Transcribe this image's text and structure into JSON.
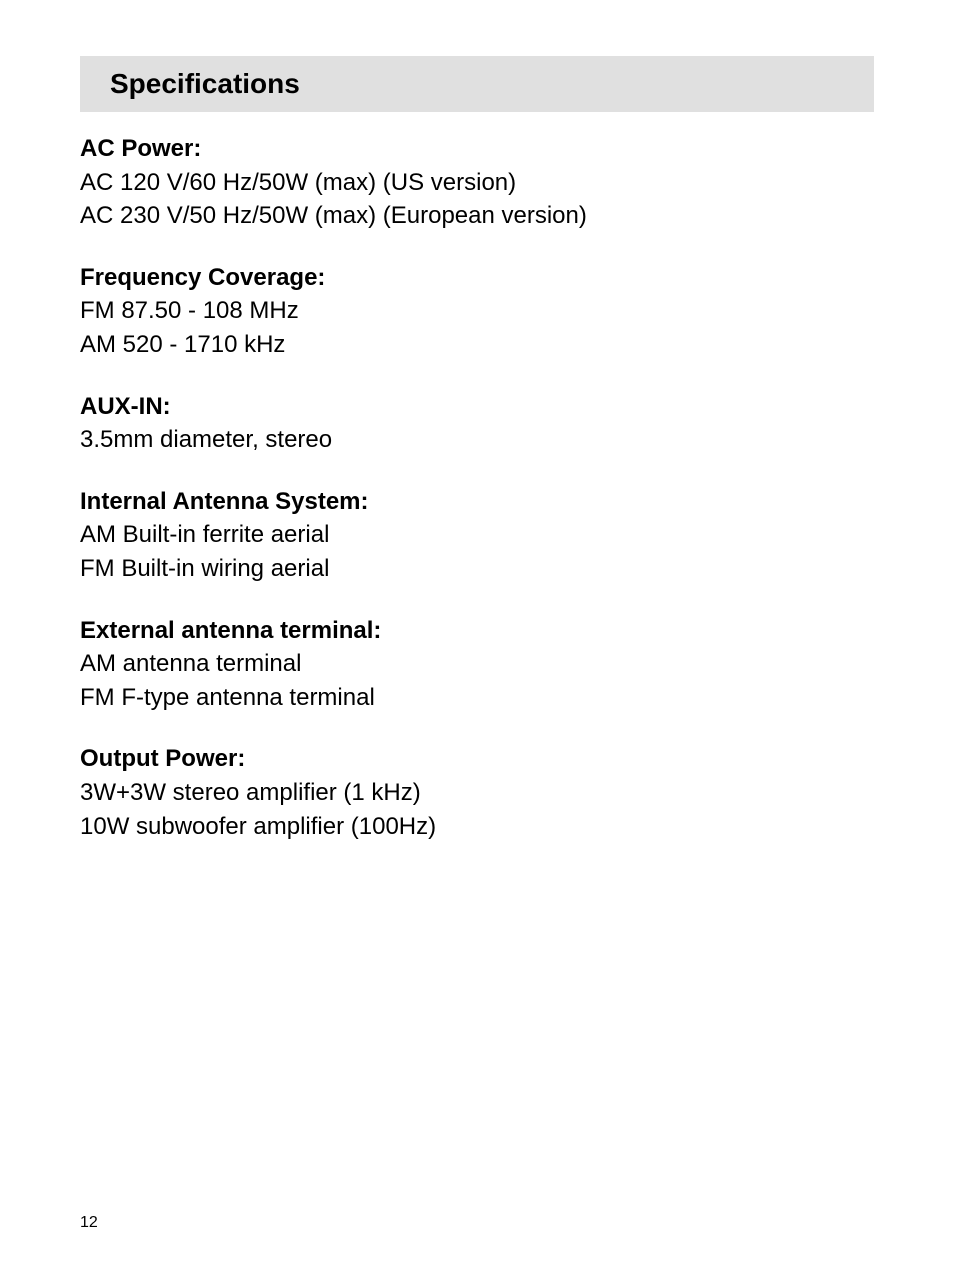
{
  "header": {
    "title": "Specifications",
    "background_color": "#e0e0e0",
    "title_fontsize": 28,
    "title_fontweight": "bold"
  },
  "specs": {
    "ac_power": {
      "label": "AC Power:",
      "line1": "AC 120 V/60 Hz/50W (max) (US version)",
      "line2": "AC 230 V/50 Hz/50W (max) (European version)"
    },
    "frequency_coverage": {
      "label": "Frequency Coverage:",
      "line1": "FM 87.50 - 108 MHz",
      "line2": "AM 520 - 1710 kHz"
    },
    "aux_in": {
      "label": "AUX-IN:",
      "line1": "3.5mm diameter, stereo"
    },
    "internal_antenna": {
      "label": "Internal Antenna System:",
      "line1": "AM Built-in ferrite aerial",
      "line2": "FM Built-in wiring aerial"
    },
    "external_antenna": {
      "label": "External antenna terminal:",
      "line1": "AM antenna terminal",
      "line2": "FM F-type antenna terminal"
    },
    "output_power": {
      "label": "Output Power:",
      "line1": "3W+3W stereo amplifier (1 kHz)",
      "line2": "10W subwoofer amplifier (100Hz)"
    }
  },
  "page_number": "12",
  "typography": {
    "body_fontsize": 24,
    "label_fontweight": "bold",
    "value_fontweight": "normal",
    "text_color": "#000000",
    "background_color": "#ffffff"
  }
}
